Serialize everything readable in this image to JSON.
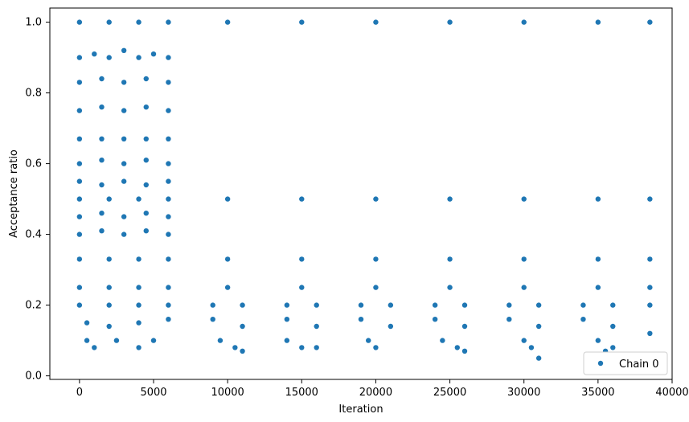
{
  "chart_data": {
    "type": "scatter",
    "title": "",
    "xlabel": "Iteration",
    "ylabel": "Acceptance ratio",
    "xlim": [
      -2000,
      40000
    ],
    "ylim": [
      -0.01,
      1.04
    ],
    "xticks": [
      0,
      5000,
      10000,
      15000,
      20000,
      25000,
      30000,
      35000,
      40000
    ],
    "yticks": [
      0.0,
      0.2,
      0.4,
      0.6,
      0.8,
      1.0
    ],
    "xtick_labels": [
      "0",
      "5000",
      "10000",
      "15000",
      "20000",
      "25000",
      "30000",
      "35000",
      "40000"
    ],
    "ytick_labels": [
      "0.0",
      "0.2",
      "0.4",
      "0.6",
      "0.8",
      "1.0"
    ],
    "grid": false,
    "legend_position": "bottom-right",
    "series": [
      {
        "name": "Chain 0",
        "color": "#1f77b4",
        "marker": "circle",
        "points": [
          [
            0,
            1.0
          ],
          [
            2000,
            1.0
          ],
          [
            4000,
            1.0
          ],
          [
            6000,
            1.0
          ],
          [
            10000,
            1.0
          ],
          [
            15000,
            1.0
          ],
          [
            20000,
            1.0
          ],
          [
            25000,
            1.0
          ],
          [
            30000,
            1.0
          ],
          [
            35000,
            1.0
          ],
          [
            38500,
            1.0
          ],
          [
            0,
            0.9
          ],
          [
            1000,
            0.91
          ],
          [
            2000,
            0.9
          ],
          [
            3000,
            0.92
          ],
          [
            4000,
            0.9
          ],
          [
            5000,
            0.91
          ],
          [
            6000,
            0.9
          ],
          [
            0,
            0.83
          ],
          [
            1500,
            0.84
          ],
          [
            3000,
            0.83
          ],
          [
            4500,
            0.84
          ],
          [
            6000,
            0.83
          ],
          [
            0,
            0.75
          ],
          [
            1500,
            0.76
          ],
          [
            3000,
            0.75
          ],
          [
            4500,
            0.76
          ],
          [
            6000,
            0.75
          ],
          [
            0,
            0.67
          ],
          [
            1500,
            0.67
          ],
          [
            3000,
            0.67
          ],
          [
            4500,
            0.67
          ],
          [
            6000,
            0.67
          ],
          [
            0,
            0.6
          ],
          [
            1500,
            0.61
          ],
          [
            3000,
            0.6
          ],
          [
            4500,
            0.61
          ],
          [
            6000,
            0.6
          ],
          [
            0,
            0.55
          ],
          [
            1500,
            0.54
          ],
          [
            3000,
            0.55
          ],
          [
            4500,
            0.54
          ],
          [
            6000,
            0.55
          ],
          [
            0,
            0.5
          ],
          [
            2000,
            0.5
          ],
          [
            4000,
            0.5
          ],
          [
            6000,
            0.5
          ],
          [
            10000,
            0.5
          ],
          [
            15000,
            0.5
          ],
          [
            20000,
            0.5
          ],
          [
            25000,
            0.5
          ],
          [
            30000,
            0.5
          ],
          [
            35000,
            0.5
          ],
          [
            38500,
            0.5
          ],
          [
            0,
            0.45
          ],
          [
            1500,
            0.46
          ],
          [
            3000,
            0.45
          ],
          [
            4500,
            0.46
          ],
          [
            6000,
            0.45
          ],
          [
            0,
            0.4
          ],
          [
            1500,
            0.41
          ],
          [
            3000,
            0.4
          ],
          [
            4500,
            0.41
          ],
          [
            6000,
            0.4
          ],
          [
            0,
            0.33
          ],
          [
            2000,
            0.33
          ],
          [
            4000,
            0.33
          ],
          [
            6000,
            0.33
          ],
          [
            10000,
            0.33
          ],
          [
            15000,
            0.33
          ],
          [
            20000,
            0.33
          ],
          [
            25000,
            0.33
          ],
          [
            30000,
            0.33
          ],
          [
            35000,
            0.33
          ],
          [
            38500,
            0.33
          ],
          [
            0,
            0.25
          ],
          [
            2000,
            0.25
          ],
          [
            4000,
            0.25
          ],
          [
            6000,
            0.25
          ],
          [
            10000,
            0.25
          ],
          [
            15000,
            0.25
          ],
          [
            20000,
            0.25
          ],
          [
            25000,
            0.25
          ],
          [
            30000,
            0.25
          ],
          [
            35000,
            0.25
          ],
          [
            38500,
            0.25
          ],
          [
            0,
            0.2
          ],
          [
            2000,
            0.2
          ],
          [
            4000,
            0.2
          ],
          [
            6000,
            0.2
          ],
          [
            9000,
            0.2
          ],
          [
            11000,
            0.2
          ],
          [
            14000,
            0.2
          ],
          [
            16000,
            0.2
          ],
          [
            19000,
            0.2
          ],
          [
            21000,
            0.2
          ],
          [
            24000,
            0.2
          ],
          [
            26000,
            0.2
          ],
          [
            29000,
            0.2
          ],
          [
            31000,
            0.2
          ],
          [
            34000,
            0.2
          ],
          [
            36000,
            0.2
          ],
          [
            38500,
            0.2
          ],
          [
            500,
            0.15
          ],
          [
            2000,
            0.14
          ],
          [
            4000,
            0.15
          ],
          [
            6000,
            0.16
          ],
          [
            9000,
            0.16
          ],
          [
            11000,
            0.14
          ],
          [
            14000,
            0.16
          ],
          [
            16000,
            0.14
          ],
          [
            19000,
            0.16
          ],
          [
            21000,
            0.14
          ],
          [
            24000,
            0.16
          ],
          [
            26000,
            0.14
          ],
          [
            29000,
            0.16
          ],
          [
            31000,
            0.14
          ],
          [
            34000,
            0.16
          ],
          [
            36000,
            0.14
          ],
          [
            38500,
            0.12
          ],
          [
            500,
            0.1
          ],
          [
            1000,
            0.08
          ],
          [
            2500,
            0.1
          ],
          [
            4000,
            0.08
          ],
          [
            5000,
            0.1
          ],
          [
            9500,
            0.1
          ],
          [
            10500,
            0.08
          ],
          [
            11000,
            0.07
          ],
          [
            14000,
            0.1
          ],
          [
            15000,
            0.08
          ],
          [
            16000,
            0.08
          ],
          [
            19500,
            0.1
          ],
          [
            20000,
            0.08
          ],
          [
            24500,
            0.1
          ],
          [
            25500,
            0.08
          ],
          [
            26000,
            0.07
          ],
          [
            30000,
            0.1
          ],
          [
            30500,
            0.08
          ],
          [
            31000,
            0.05
          ],
          [
            35000,
            0.1
          ],
          [
            35500,
            0.07
          ],
          [
            36000,
            0.08
          ]
        ]
      }
    ]
  }
}
